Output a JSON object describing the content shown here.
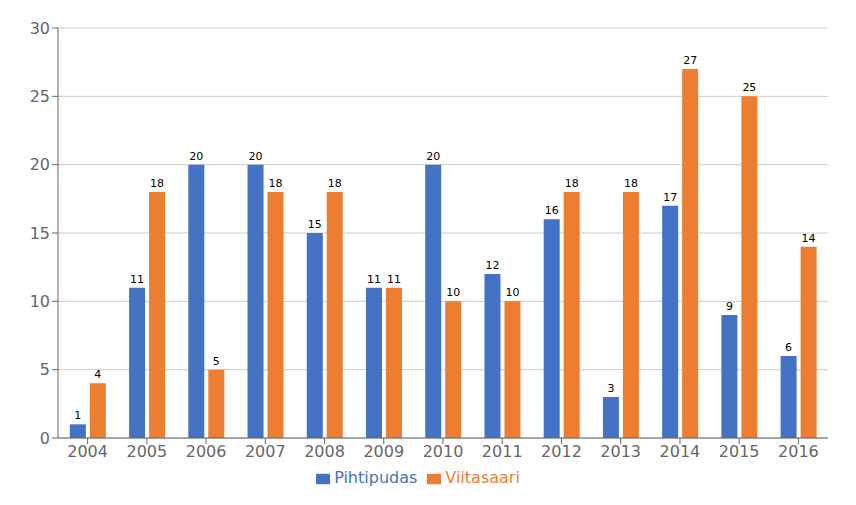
{
  "chart_data": {
    "type": "bar",
    "categories": [
      "2004",
      "2005",
      "2006",
      "2007",
      "2008",
      "2009",
      "2010",
      "2011",
      "2012",
      "2013",
      "2014",
      "2015",
      "2016"
    ],
    "series": [
      {
        "name": "Pihtipudas",
        "color": "#4472C4",
        "values": [
          1,
          11,
          20,
          20,
          15,
          11,
          20,
          12,
          16,
          3,
          17,
          9,
          6
        ]
      },
      {
        "name": "Viitasaari",
        "color": "#ED7D31",
        "values": [
          4,
          18,
          5,
          18,
          18,
          11,
          10,
          10,
          18,
          18,
          27,
          25,
          14
        ]
      }
    ],
    "ylim": [
      0,
      30
    ],
    "yticks": [
      0,
      5,
      10,
      15,
      20,
      25,
      30
    ],
    "grid": true,
    "legend": "bottom",
    "data_labels": true
  }
}
